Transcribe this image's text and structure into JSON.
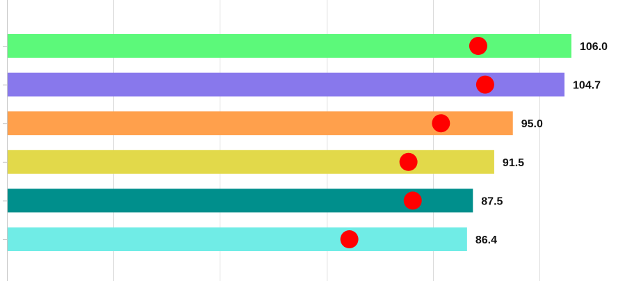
{
  "chart_data": {
    "type": "bar",
    "orientation": "horizontal",
    "grid": true,
    "xlim": [
      0,
      115
    ],
    "bars": [
      {
        "value": 106.0,
        "label": "106.0",
        "color": "#5cf97a"
      },
      {
        "value": 104.7,
        "label": "104.7",
        "color": "#8878ec"
      },
      {
        "value": 95.0,
        "label": "95.0",
        "color": "#ffa04c"
      },
      {
        "value": 91.5,
        "label": "91.5",
        "color": "#e2d94a"
      },
      {
        "value": 87.5,
        "label": "87.5",
        "color": "#008f8c"
      },
      {
        "value": 86.4,
        "label": "86.4",
        "color": "#70ece6"
      }
    ],
    "markers": {
      "color": "#ff0000",
      "values": [
        88.5,
        89.8,
        81.5,
        75.4,
        76.2,
        64.3
      ]
    }
  }
}
